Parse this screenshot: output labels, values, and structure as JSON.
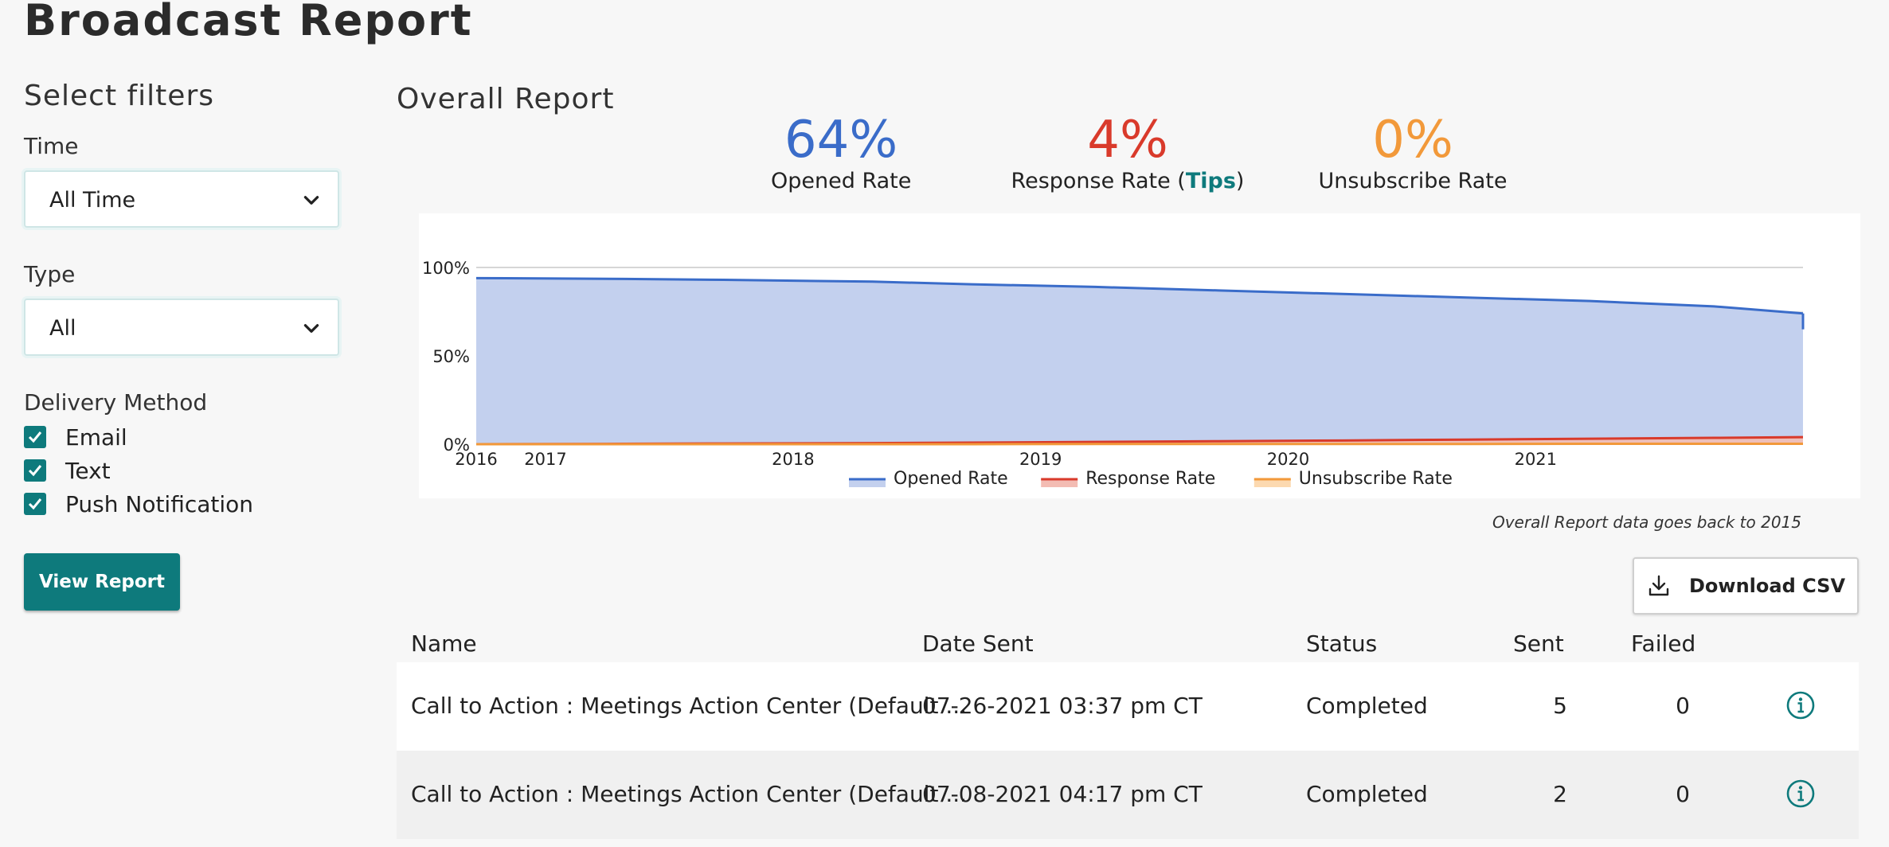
{
  "page": {
    "title": "Broadcast Report"
  },
  "filters": {
    "heading": "Select filters",
    "time": {
      "label": "Time",
      "selected": "All Time"
    },
    "type": {
      "label": "Type",
      "selected": "All"
    },
    "delivery": {
      "label": "Delivery Method",
      "options": [
        {
          "label": "Email",
          "checked": true
        },
        {
          "label": "Text",
          "checked": true
        },
        {
          "label": "Push Notification",
          "checked": true
        }
      ]
    },
    "view_button": "View Report"
  },
  "overall": {
    "title": "Overall Report",
    "metrics": {
      "opened": {
        "value": "64%",
        "label": "Opened Rate"
      },
      "response": {
        "value": "4%",
        "label_prefix": "Response Rate (",
        "tips": "Tips",
        "label_suffix": ")"
      },
      "unsubscribe": {
        "value": "0%",
        "label": "Unsubscribe Rate"
      }
    },
    "note": "Overall Report data goes back to 2015"
  },
  "colors": {
    "accent": "#0e7a7c",
    "opened": "#3a6cc9",
    "response": "#d93a2b",
    "unsubscribe": "#f2993a"
  },
  "chart_data": {
    "type": "area",
    "x": [
      2016.0,
      2016.6,
      2017.0,
      2017.6,
      2018.0,
      2018.5,
      2019.0,
      2019.5,
      2020.0,
      2020.5,
      2021.0,
      2021.36
    ],
    "series": [
      {
        "name": "Opened Rate",
        "values": [
          94,
          93.5,
          93,
          92,
          90.5,
          89,
          87,
          85,
          83,
          81,
          78,
          74
        ]
      },
      {
        "name": "Response Rate",
        "values": [
          0,
          0.2,
          0.4,
          0.6,
          0.9,
          1.3,
          1.7,
          2.1,
          2.6,
          3.1,
          3.6,
          4
        ]
      },
      {
        "name": "Unsubscribe Rate",
        "values": [
          0,
          0,
          0,
          0,
          0,
          0.1,
          0.1,
          0.1,
          0.1,
          0.2,
          0.2,
          0.2
        ]
      }
    ],
    "xticks": [
      "2016",
      "2017",
      "2018",
      "2019",
      "2020",
      "2021"
    ],
    "xtick_values": [
      2016,
      2016.28,
      2017.28,
      2018.28,
      2019.28,
      2020.28
    ],
    "yticks": [
      "0%",
      "50%",
      "100%"
    ],
    "ytick_values": [
      0,
      50,
      100
    ],
    "xlim": [
      2016,
      2021.36
    ],
    "ylim": [
      0,
      100
    ],
    "grid": true,
    "legend": "bottom"
  },
  "download_button": "Download CSV",
  "table": {
    "headers": {
      "name": "Name",
      "date": "Date Sent",
      "status": "Status",
      "sent": "Sent",
      "failed": "Failed"
    },
    "rows": [
      {
        "name": "Call to Action : Meetings Action Center (Default ...",
        "date": "07-26-2021 03:37 pm CT",
        "status": "Completed",
        "sent": "5",
        "failed": "0"
      },
      {
        "name": "Call to Action : Meetings Action Center (Default ...",
        "date": "07-08-2021 04:17 pm CT",
        "status": "Completed",
        "sent": "2",
        "failed": "0"
      }
    ]
  }
}
